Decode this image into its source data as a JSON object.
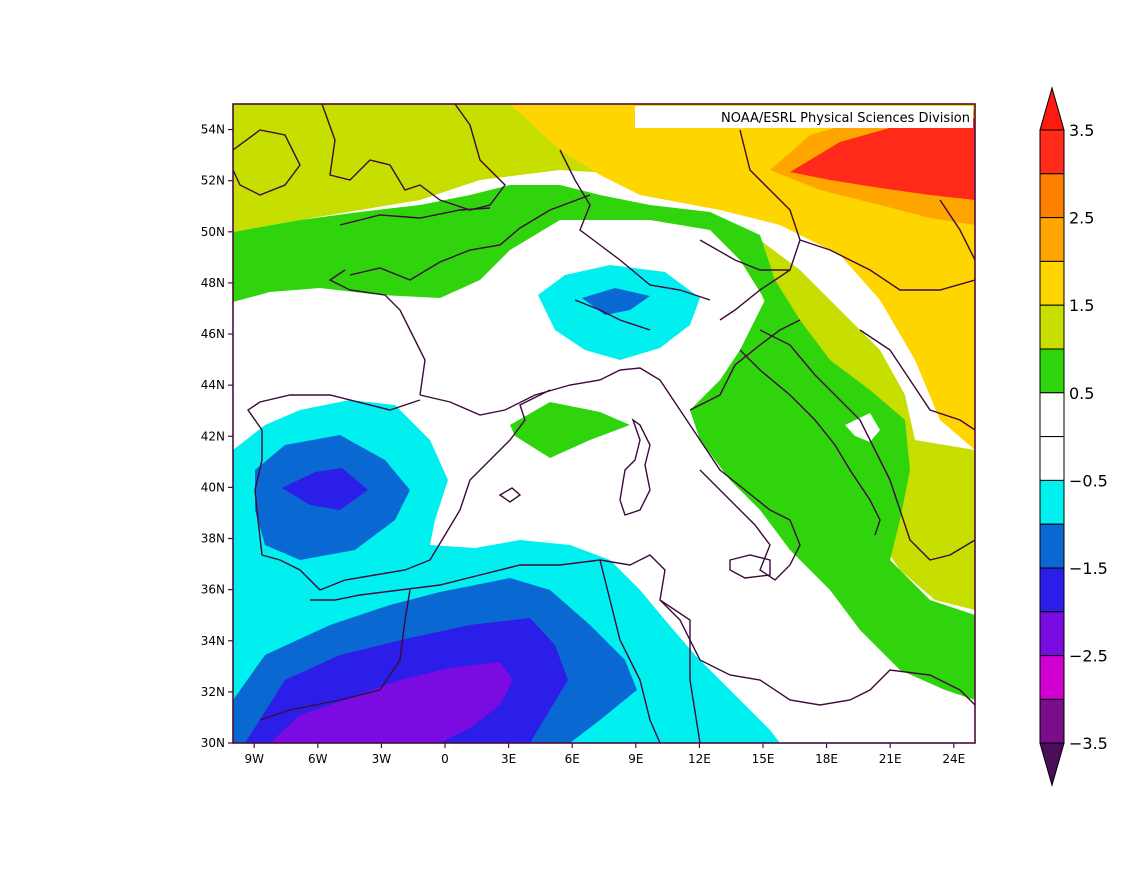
{
  "credit": "NOAA/ESRL Physical Sciences Division",
  "map": {
    "lon_range": [
      -10,
      25
    ],
    "lat_range": [
      30,
      55
    ],
    "x_ticks": [
      "9W",
      "6W",
      "3W",
      "0",
      "3E",
      "6E",
      "9E",
      "12E",
      "15E",
      "18E",
      "21E",
      "24E"
    ],
    "y_ticks": [
      "54N",
      "52N",
      "50N",
      "48N",
      "46N",
      "44N",
      "42N",
      "40N",
      "38N",
      "36N",
      "34N",
      "32N",
      "30N"
    ]
  },
  "colorbar": {
    "labels": [
      "3.5",
      "2.5",
      "1.5",
      "0.5",
      "−0.5",
      "−1.5",
      "−2.5",
      "−3.5"
    ],
    "bins_top_to_bottom": [
      "#ff2a1a",
      "#ff7f00",
      "#ffa500",
      "#ffd500",
      "#c6df00",
      "#2fd40d",
      "#ffffff",
      "#ffffff",
      "#00f0f0",
      "#0a68d2",
      "#2a1ee8",
      "#7a0ce2",
      "#d000d0",
      "#7a0e8a"
    ],
    "over_color": "#ff1a10",
    "under_color": "#4a0e5a"
  },
  "colors": {
    "frame": "#4a0e3a",
    "coast": "#3d0a3a"
  }
}
